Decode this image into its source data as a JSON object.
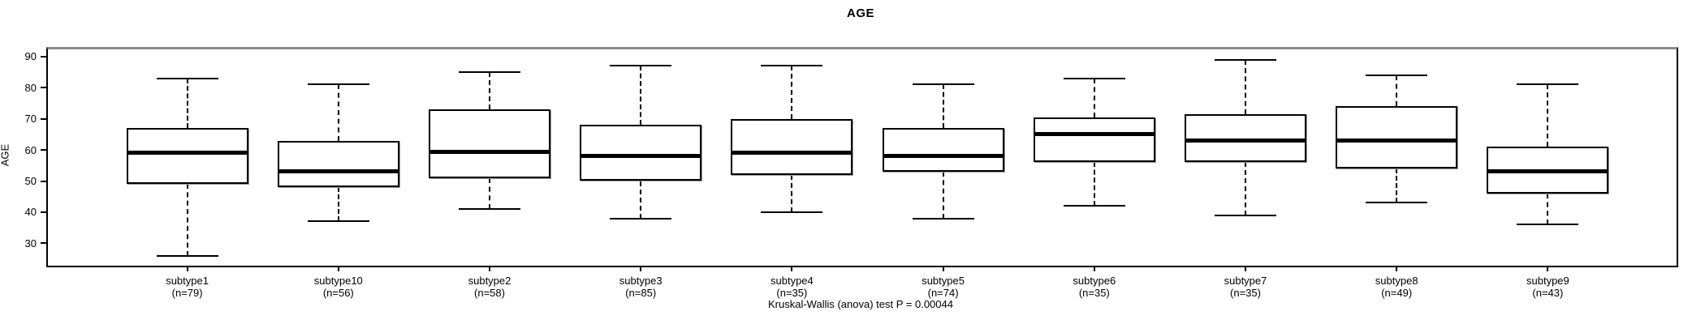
{
  "title": "AGE",
  "footer": "Kruskal-Wallis (anova) test P = 0.00044",
  "colors": {
    "line": "#000000",
    "plot_border_top": "#8c8c8c",
    "background": "#ffffff"
  },
  "chart_data": {
    "type": "boxplot",
    "title": "AGE",
    "xlabel": "",
    "ylabel": "AGE",
    "y_ticks": [
      30,
      40,
      50,
      60,
      70,
      80,
      90
    ],
    "ylim": [
      22.8,
      92.3
    ],
    "grid": false,
    "legend": null,
    "annotation": "Kruskal-Wallis (anova) test P = 0.00044",
    "categories": [
      "subtype1",
      "subtype10",
      "subtype2",
      "subtype3",
      "subtype4",
      "subtype5",
      "subtype6",
      "subtype7",
      "subtype8",
      "subtype9"
    ],
    "sample_sizes": [
      "(n=79)",
      "(n=56)",
      "(n=58)",
      "(n=85)",
      "(n=35)",
      "(n=74)",
      "(n=35)",
      "(n=35)",
      "(n=49)",
      "(n=43)"
    ],
    "series": [
      {
        "name": "subtype1",
        "n": 79,
        "whisker_low": 26,
        "q1": 49,
        "median": 59,
        "q3": 67,
        "whisker_high": 83
      },
      {
        "name": "subtype10",
        "n": 56,
        "whisker_low": 37,
        "q1": 48,
        "median": 53,
        "q3": 63,
        "whisker_high": 81
      },
      {
        "name": "subtype2",
        "n": 58,
        "whisker_low": 41,
        "q1": 51,
        "median": 59.5,
        "q3": 73,
        "whisker_high": 85
      },
      {
        "name": "subtype3",
        "n": 85,
        "whisker_low": 38,
        "q1": 50,
        "median": 58,
        "q3": 68,
        "whisker_high": 87
      },
      {
        "name": "subtype4",
        "n": 35,
        "whisker_low": 40,
        "q1": 52,
        "median": 59,
        "q3": 70,
        "whisker_high": 87
      },
      {
        "name": "subtype5",
        "n": 74,
        "whisker_low": 38,
        "q1": 53,
        "median": 58,
        "q3": 67,
        "whisker_high": 81
      },
      {
        "name": "subtype6",
        "n": 35,
        "whisker_low": 42,
        "q1": 56,
        "median": 65,
        "q3": 70.5,
        "whisker_high": 83
      },
      {
        "name": "subtype7",
        "n": 35,
        "whisker_low": 39,
        "q1": 56,
        "median": 63,
        "q3": 71.5,
        "whisker_high": 89
      },
      {
        "name": "subtype8",
        "n": 49,
        "whisker_low": 43,
        "q1": 54,
        "median": 63,
        "q3": 74,
        "whisker_high": 84
      },
      {
        "name": "subtype9",
        "n": 43,
        "whisker_low": 36,
        "q1": 46,
        "median": 53,
        "q3": 61,
        "whisker_high": 81
      }
    ]
  }
}
